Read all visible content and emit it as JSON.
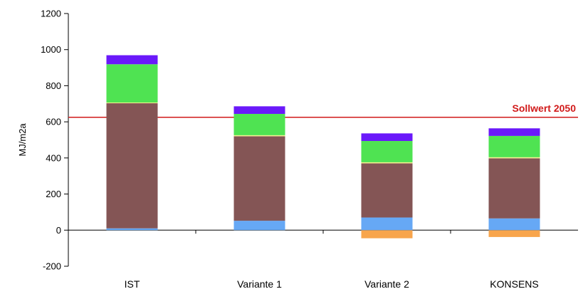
{
  "chart_data": {
    "type": "bar",
    "stacked": true,
    "categories": [
      "IST",
      "Variante 1",
      "Variante 2",
      "KONSENS"
    ],
    "ylabel": "MJ/m2a",
    "ylim": [
      -200,
      1200
    ],
    "yticks": [
      -200,
      0,
      200,
      400,
      600,
      800,
      1000,
      1200
    ],
    "series": [
      {
        "color": "#f8a54c",
        "values": [
          0,
          0,
          -45,
          -38
        ]
      },
      {
        "color": "#66a8f5",
        "values": [
          10,
          52,
          70,
          65
        ]
      },
      {
        "color": "#845555",
        "values": [
          693,
          468,
          300,
          333
        ]
      },
      {
        "color": "#f2f28c",
        "values": [
          4,
          6,
          6,
          6
        ]
      },
      {
        "color": "#4fe352",
        "values": [
          212,
          118,
          118,
          118
        ]
      },
      {
        "color": "#6a19fa",
        "values": [
          50,
          42,
          42,
          42
        ]
      }
    ],
    "reference_line": {
      "value": 625,
      "label": "Sollwert 2050",
      "color": "#d11a1a"
    },
    "grid": false,
    "legend": "none"
  }
}
